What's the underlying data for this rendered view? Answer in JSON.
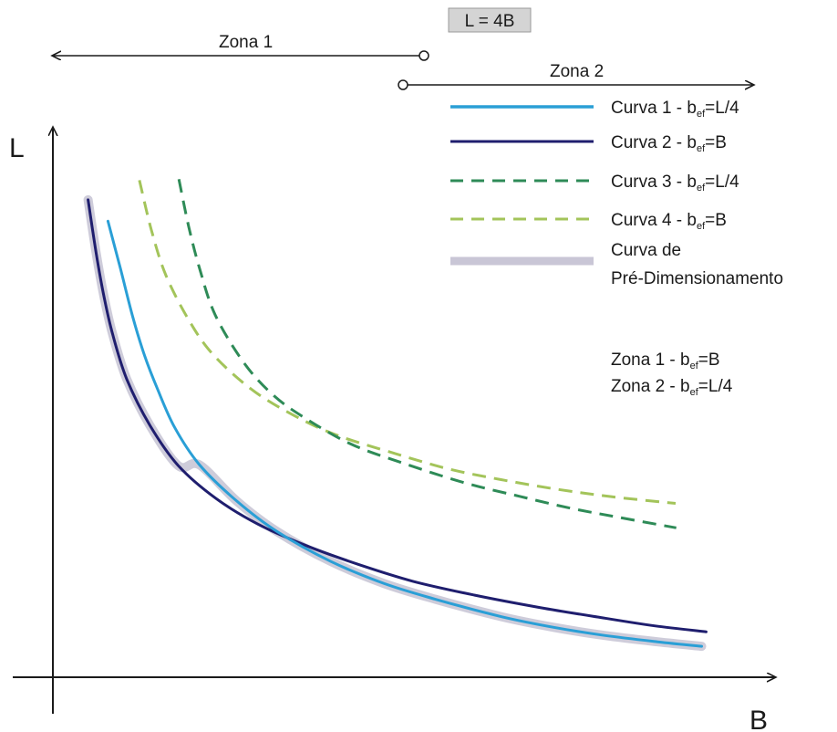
{
  "chart_data": {
    "type": "line",
    "title": "",
    "xlabel": "B",
    "ylabel": "L",
    "grid": false,
    "legend_placement": "top-right",
    "boundary_label": "L = 4B",
    "zone1_label": "Zona 1",
    "zone2_label": "Zona 2",
    "annotation": {
      "line1_prefix": "Zona 1 - b",
      "line1_sub": "ef",
      "line1_suffix": "=B",
      "line2_prefix": "Zona 2 - b",
      "line2_sub": "ef",
      "line2_suffix": "=L/4"
    },
    "series": [
      {
        "name": "Curva 1 - bef=L/4",
        "label_prefix": "Curva 1 - b",
        "label_sub": "ef",
        "label_suffix": "=L/4",
        "color": "#2a9fd6",
        "style": "solid",
        "points": [
          [
            0.0762,
            0.8165
          ],
          [
            0.0934,
            0.7324
          ],
          [
            0.1106,
            0.6451
          ],
          [
            0.1269,
            0.5762
          ],
          [
            0.1448,
            0.5161
          ],
          [
            0.1686,
            0.4474
          ],
          [
            0.2032,
            0.3801
          ],
          [
            0.2545,
            0.3155
          ],
          [
            0.311,
            0.2604
          ],
          [
            0.3854,
            0.2071
          ],
          [
            0.459,
            0.1677
          ],
          [
            0.529,
            0.1399
          ],
          [
            0.6218,
            0.1082
          ],
          [
            0.6934,
            0.0894
          ],
          [
            0.7638,
            0.0749
          ],
          [
            0.8374,
            0.0634
          ],
          [
            0.8984,
            0.0554
          ]
        ]
      },
      {
        "name": "Curva 2 - bef=B",
        "label_prefix": "Curva 2 - b",
        "label_sub": "ef",
        "label_suffix": "=B",
        "color": "#1f1e6e",
        "style": "solid",
        "points": [
          [
            0.0488,
            0.8547
          ],
          [
            0.0601,
            0.758
          ],
          [
            0.0708,
            0.681
          ],
          [
            0.0828,
            0.6138
          ],
          [
            0.1023,
            0.5337
          ],
          [
            0.1346,
            0.4504
          ],
          [
            0.1739,
            0.3785
          ],
          [
            0.2257,
            0.3201
          ],
          [
            0.2834,
            0.2744
          ],
          [
            0.3474,
            0.2374
          ],
          [
            0.4227,
            0.2022
          ],
          [
            0.4986,
            0.1718
          ],
          [
            0.5836,
            0.1471
          ],
          [
            0.6741,
            0.1248
          ],
          [
            0.7543,
            0.1078
          ],
          [
            0.8332,
            0.092
          ],
          [
            0.9047,
            0.0814
          ]
        ]
      },
      {
        "name": "Curva 3 - bef=L/4",
        "label_prefix": "Curva 3 - b",
        "label_sub": "ef",
        "label_suffix": "=L/4",
        "color": "#2e8b57",
        "style": "dashed",
        "points": [
          [
            0.1745,
            0.8917
          ],
          [
            0.1883,
            0.8057
          ],
          [
            0.2035,
            0.73
          ],
          [
            0.2248,
            0.6487
          ],
          [
            0.2627,
            0.5662
          ],
          [
            0.3019,
            0.5088
          ],
          [
            0.3451,
            0.4673
          ],
          [
            0.4124,
            0.4176
          ],
          [
            0.4857,
            0.383
          ],
          [
            0.5696,
            0.3483
          ],
          [
            0.6463,
            0.3238
          ],
          [
            0.7162,
            0.3028
          ],
          [
            0.7829,
            0.2865
          ],
          [
            0.8632,
            0.2675
          ]
        ]
      },
      {
        "name": "Curva 4 - bef=B",
        "label_prefix": "Curva 4 - b",
        "label_sub": "ef",
        "label_suffix": "=B",
        "color": "#a3c45a",
        "style": "dashed",
        "points": [
          [
            0.1198,
            0.8899
          ],
          [
            0.1363,
            0.8013
          ],
          [
            0.1565,
            0.7198
          ],
          [
            0.1886,
            0.6385
          ],
          [
            0.2217,
            0.5779
          ],
          [
            0.273,
            0.5175
          ],
          [
            0.3262,
            0.474
          ],
          [
            0.39,
            0.4349
          ],
          [
            0.4734,
            0.4006
          ],
          [
            0.55,
            0.3723
          ],
          [
            0.6254,
            0.3526
          ],
          [
            0.7002,
            0.3361
          ],
          [
            0.7744,
            0.3231
          ],
          [
            0.8624,
            0.3112
          ]
        ]
      },
      {
        "name": "Curva de Pré-Dimensionamento",
        "label_line1": "Curva de",
        "label_line2": "Pré-Dimensionamento",
        "color": "#c9c6d6",
        "style": "thick",
        "points": [
          [
            0.0488,
            0.8547
          ],
          [
            0.0601,
            0.758
          ],
          [
            0.0708,
            0.681
          ],
          [
            0.0828,
            0.6138
          ],
          [
            0.1023,
            0.5337
          ],
          [
            0.1346,
            0.4504
          ],
          [
            0.1739,
            0.3785
          ],
          [
            0.2032,
            0.3801
          ],
          [
            0.2545,
            0.3155
          ],
          [
            0.311,
            0.2604
          ],
          [
            0.3854,
            0.2071
          ],
          [
            0.459,
            0.1677
          ],
          [
            0.529,
            0.1399
          ],
          [
            0.6218,
            0.1082
          ],
          [
            0.6934,
            0.0894
          ],
          [
            0.7638,
            0.0749
          ],
          [
            0.8374,
            0.0634
          ],
          [
            0.8984,
            0.0554
          ]
        ]
      }
    ]
  }
}
